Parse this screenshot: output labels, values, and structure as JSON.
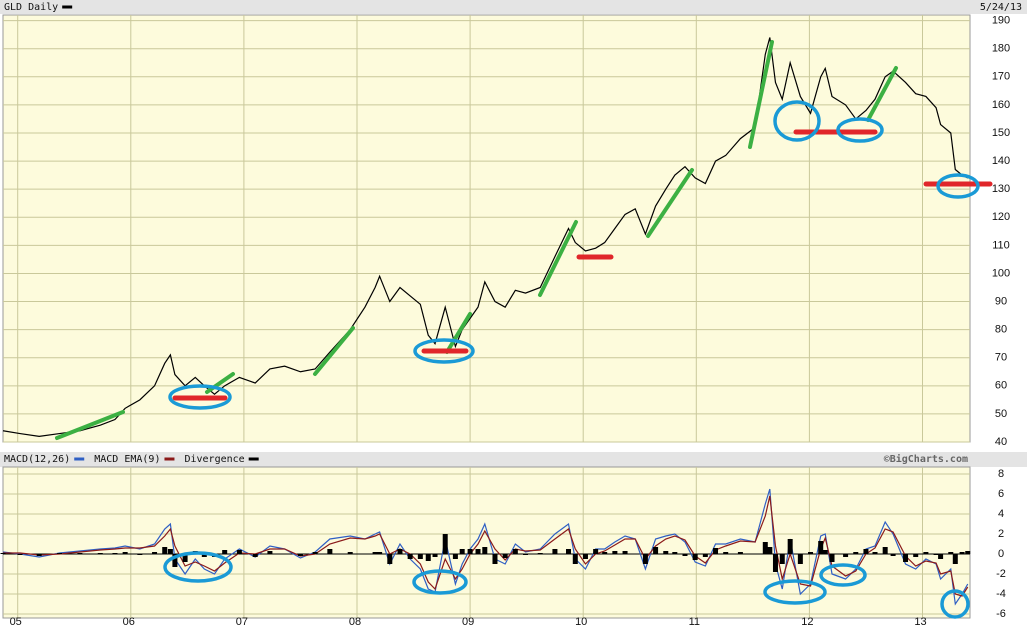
{
  "chart_data": [
    {
      "type": "line",
      "subtitle": "5/24/13",
      "x": [
        2004.87,
        2005.02,
        2005.19,
        2005.37,
        2005.55,
        2005.73,
        2005.86,
        2005.95,
        2006.08,
        2006.21,
        2006.3,
        2006.35,
        2006.39,
        2006.48,
        2006.57,
        2006.65,
        2006.74,
        2006.83,
        2006.96,
        2007.1,
        2007.23,
        2007.36,
        2007.5,
        2007.63,
        2007.76,
        2007.94,
        2008.07,
        2008.16,
        2008.2,
        2008.29,
        2008.38,
        2008.47,
        2008.56,
        2008.63,
        2008.69,
        2008.78,
        2008.87,
        2008.93,
        2009.0,
        2009.07,
        2009.13,
        2009.22,
        2009.31,
        2009.4,
        2009.49,
        2009.62,
        2009.75,
        2009.87,
        2009.93,
        2010.02,
        2010.11,
        2010.19,
        2010.28,
        2010.37,
        2010.46,
        2010.55,
        2010.64,
        2010.73,
        2010.81,
        2010.9,
        2010.99,
        2011.08,
        2011.17,
        2011.26,
        2011.39,
        2011.52,
        2011.61,
        2011.65,
        2011.7,
        2011.76,
        2011.83,
        2011.92,
        2012.01,
        2012.1,
        2012.14,
        2012.2,
        2012.32,
        2012.41,
        2012.5,
        2012.58,
        2012.67,
        2012.74,
        2012.85,
        2012.94,
        2013.03,
        2013.12,
        2013.16,
        2013.25,
        2013.29,
        2013.35,
        2013.4
      ],
      "series": [
        {
          "name": "GLD Daily",
          "color": "#000000",
          "values": [
            44,
            43,
            42,
            43,
            44,
            46,
            48,
            52,
            55,
            60,
            68,
            71,
            64,
            60,
            63,
            60,
            57,
            60,
            63,
            61,
            66,
            67,
            65,
            66,
            72,
            80,
            88,
            95,
            99,
            90,
            95,
            92,
            89,
            78,
            75,
            88,
            74,
            80,
            84,
            88,
            97,
            90,
            88,
            94,
            93,
            95,
            106,
            116,
            111,
            108,
            109,
            111,
            116,
            121,
            123,
            114,
            124,
            130,
            135,
            138,
            134,
            132,
            140,
            142,
            148,
            152,
            178,
            184,
            168,
            162,
            175,
            163,
            157,
            170,
            173,
            163,
            160,
            155,
            158,
            162,
            170,
            172,
            168,
            164,
            163,
            159,
            153,
            150,
            137,
            135,
            134
          ]
        }
      ],
      "xlim": [
        2004.87,
        2013.42
      ],
      "ylim": [
        40,
        192
      ],
      "yticks": [
        40,
        50,
        60,
        70,
        80,
        90,
        100,
        110,
        120,
        130,
        140,
        150,
        160,
        170,
        180,
        190
      ],
      "grid": true
    },
    {
      "type": "line",
      "credit": "©BigCharts.com",
      "x": [
        2004.87,
        2005.02,
        2005.19,
        2005.37,
        2005.55,
        2005.73,
        2005.86,
        2005.95,
        2006.08,
        2006.21,
        2006.3,
        2006.35,
        2006.39,
        2006.48,
        2006.57,
        2006.65,
        2006.74,
        2006.83,
        2006.96,
        2007.1,
        2007.23,
        2007.36,
        2007.5,
        2007.63,
        2007.76,
        2007.94,
        2008.07,
        2008.16,
        2008.2,
        2008.29,
        2008.38,
        2008.47,
        2008.56,
        2008.63,
        2008.69,
        2008.78,
        2008.87,
        2008.93,
        2009.0,
        2009.07,
        2009.13,
        2009.22,
        2009.31,
        2009.4,
        2009.49,
        2009.62,
        2009.75,
        2009.87,
        2009.93,
        2010.02,
        2010.11,
        2010.19,
        2010.28,
        2010.37,
        2010.46,
        2010.55,
        2010.64,
        2010.73,
        2010.81,
        2010.9,
        2010.99,
        2011.08,
        2011.17,
        2011.26,
        2011.39,
        2011.52,
        2011.61,
        2011.65,
        2011.7,
        2011.76,
        2011.83,
        2011.92,
        2012.01,
        2012.1,
        2012.14,
        2012.2,
        2012.32,
        2012.41,
        2012.5,
        2012.58,
        2012.67,
        2012.74,
        2012.85,
        2012.94,
        2013.03,
        2013.12,
        2013.16,
        2013.25,
        2013.29,
        2013.35,
        2013.4
      ],
      "series": [
        {
          "name": "MACD(12,26)",
          "color": "#2f5fc4",
          "values": [
            0.2,
            0,
            -0.3,
            0.1,
            0.3,
            0.5,
            0.6,
            0.8,
            0.5,
            1.0,
            2.5,
            3.0,
            -0.5,
            -2.0,
            -0.5,
            -1.5,
            -2.0,
            -0.5,
            0.5,
            -0.3,
            0.8,
            0.5,
            -0.4,
            0.2,
            1.5,
            1.8,
            1.5,
            2.0,
            2.2,
            -1.0,
            1.0,
            -0.5,
            -1.5,
            -3.5,
            -3.8,
            1.5,
            -3.0,
            -1.0,
            0.5,
            1.5,
            3.0,
            -0.5,
            -1.0,
            1.0,
            0.2,
            0.5,
            2.0,
            3.0,
            -0.5,
            -1.5,
            0.5,
            0.5,
            1.2,
            1.8,
            1.5,
            -1.5,
            1.5,
            1.8,
            2.0,
            1.2,
            -0.8,
            -1.2,
            1.0,
            1.0,
            1.5,
            1.2,
            5.0,
            6.5,
            -1.0,
            -3.5,
            1.5,
            -4.0,
            -3.0,
            1.8,
            2.0,
            -2.0,
            -2.5,
            -1.5,
            0.5,
            0.8,
            3.2,
            2.0,
            -1.0,
            -1.5,
            -0.5,
            -1.0,
            -2.5,
            -1.5,
            -5.0,
            -4.0,
            -3.0
          ]
        },
        {
          "name": "MACD EMA(9)",
          "color": "#8b1a1a",
          "values": [
            0.1,
            0.1,
            -0.1,
            0,
            0.2,
            0.4,
            0.5,
            0.6,
            0.6,
            0.8,
            1.8,
            2.5,
            0.8,
            -1.2,
            -0.8,
            -1.2,
            -1.7,
            -0.9,
            0.1,
            0,
            0.5,
            0.5,
            -0.2,
            0,
            1.0,
            1.6,
            1.5,
            1.8,
            2.0,
            0,
            0.5,
            0,
            -1.0,
            -2.8,
            -3.5,
            -0.5,
            -2.5,
            -1.5,
            0,
            1.0,
            2.3,
            0.5,
            -0.6,
            0.5,
            0.3,
            0.4,
            1.5,
            2.5,
            0.5,
            -1.0,
            0,
            0.3,
            0.9,
            1.5,
            1.5,
            -0.5,
            0.8,
            1.5,
            1.8,
            1.4,
            -0.2,
            -0.9,
            0.4,
            0.8,
            1.3,
            1.2,
            3.8,
            5.8,
            0.8,
            -2.5,
            0,
            -3.0,
            -3.2,
            0.5,
            1.6,
            -1.2,
            -2.2,
            -1.7,
            0,
            0.6,
            2.5,
            2.2,
            -0.2,
            -1.2,
            -0.7,
            -0.9,
            -2.0,
            -1.7,
            -4.0,
            -4.2,
            -3.3
          ]
        },
        {
          "name": "Divergence",
          "color": "#000000",
          "kind": "bar",
          "values": [
            0.1,
            -0.1,
            -0.2,
            0.1,
            0.1,
            0.1,
            0.1,
            0.2,
            -0.1,
            0.2,
            0.7,
            0.5,
            -1.3,
            -0.8,
            0.3,
            -0.3,
            -0.3,
            0.4,
            0.4,
            -0.3,
            0.3,
            0,
            -0.2,
            0.2,
            0.5,
            0.2,
            0,
            0.2,
            0.2,
            -1.0,
            0.5,
            -0.5,
            -0.5,
            -0.7,
            -0.3,
            2.0,
            -0.5,
            0.5,
            0.5,
            0.5,
            0.7,
            -1.0,
            -0.4,
            0.5,
            -0.1,
            0.1,
            0.5,
            0.5,
            -1.0,
            -0.5,
            0.5,
            0.2,
            0.3,
            0.3,
            0,
            -1.0,
            0.7,
            0.3,
            0.2,
            -0.2,
            -0.6,
            -0.3,
            0.6,
            0.2,
            0.2,
            0,
            1.2,
            0.7,
            -1.8,
            -1.0,
            1.5,
            -1.0,
            0.2,
            1.3,
            0.4,
            -0.8,
            -0.3,
            0.2,
            0.5,
            0.2,
            0.7,
            -0.2,
            -0.8,
            -0.3,
            0.2,
            -0.1,
            -0.5,
            0.2,
            -1.0,
            0.2,
            0.3
          ]
        }
      ],
      "xlim": [
        2004.87,
        2013.42
      ],
      "xticks": [
        {
          "value": 2005,
          "label": "05"
        },
        {
          "value": 2006,
          "label": "06"
        },
        {
          "value": 2007,
          "label": "07"
        },
        {
          "value": 2008,
          "label": "08"
        },
        {
          "value": 2009,
          "label": "09"
        },
        {
          "value": 2010,
          "label": "10"
        },
        {
          "value": 2011,
          "label": "11"
        },
        {
          "value": 2012,
          "label": "12"
        },
        {
          "value": 2013,
          "label": "13"
        }
      ],
      "ylim": [
        -6.4,
        8.7
      ],
      "yticks": [
        8,
        6,
        4,
        2,
        0,
        -2,
        -4,
        -6
      ],
      "grid": true
    }
  ]
}
